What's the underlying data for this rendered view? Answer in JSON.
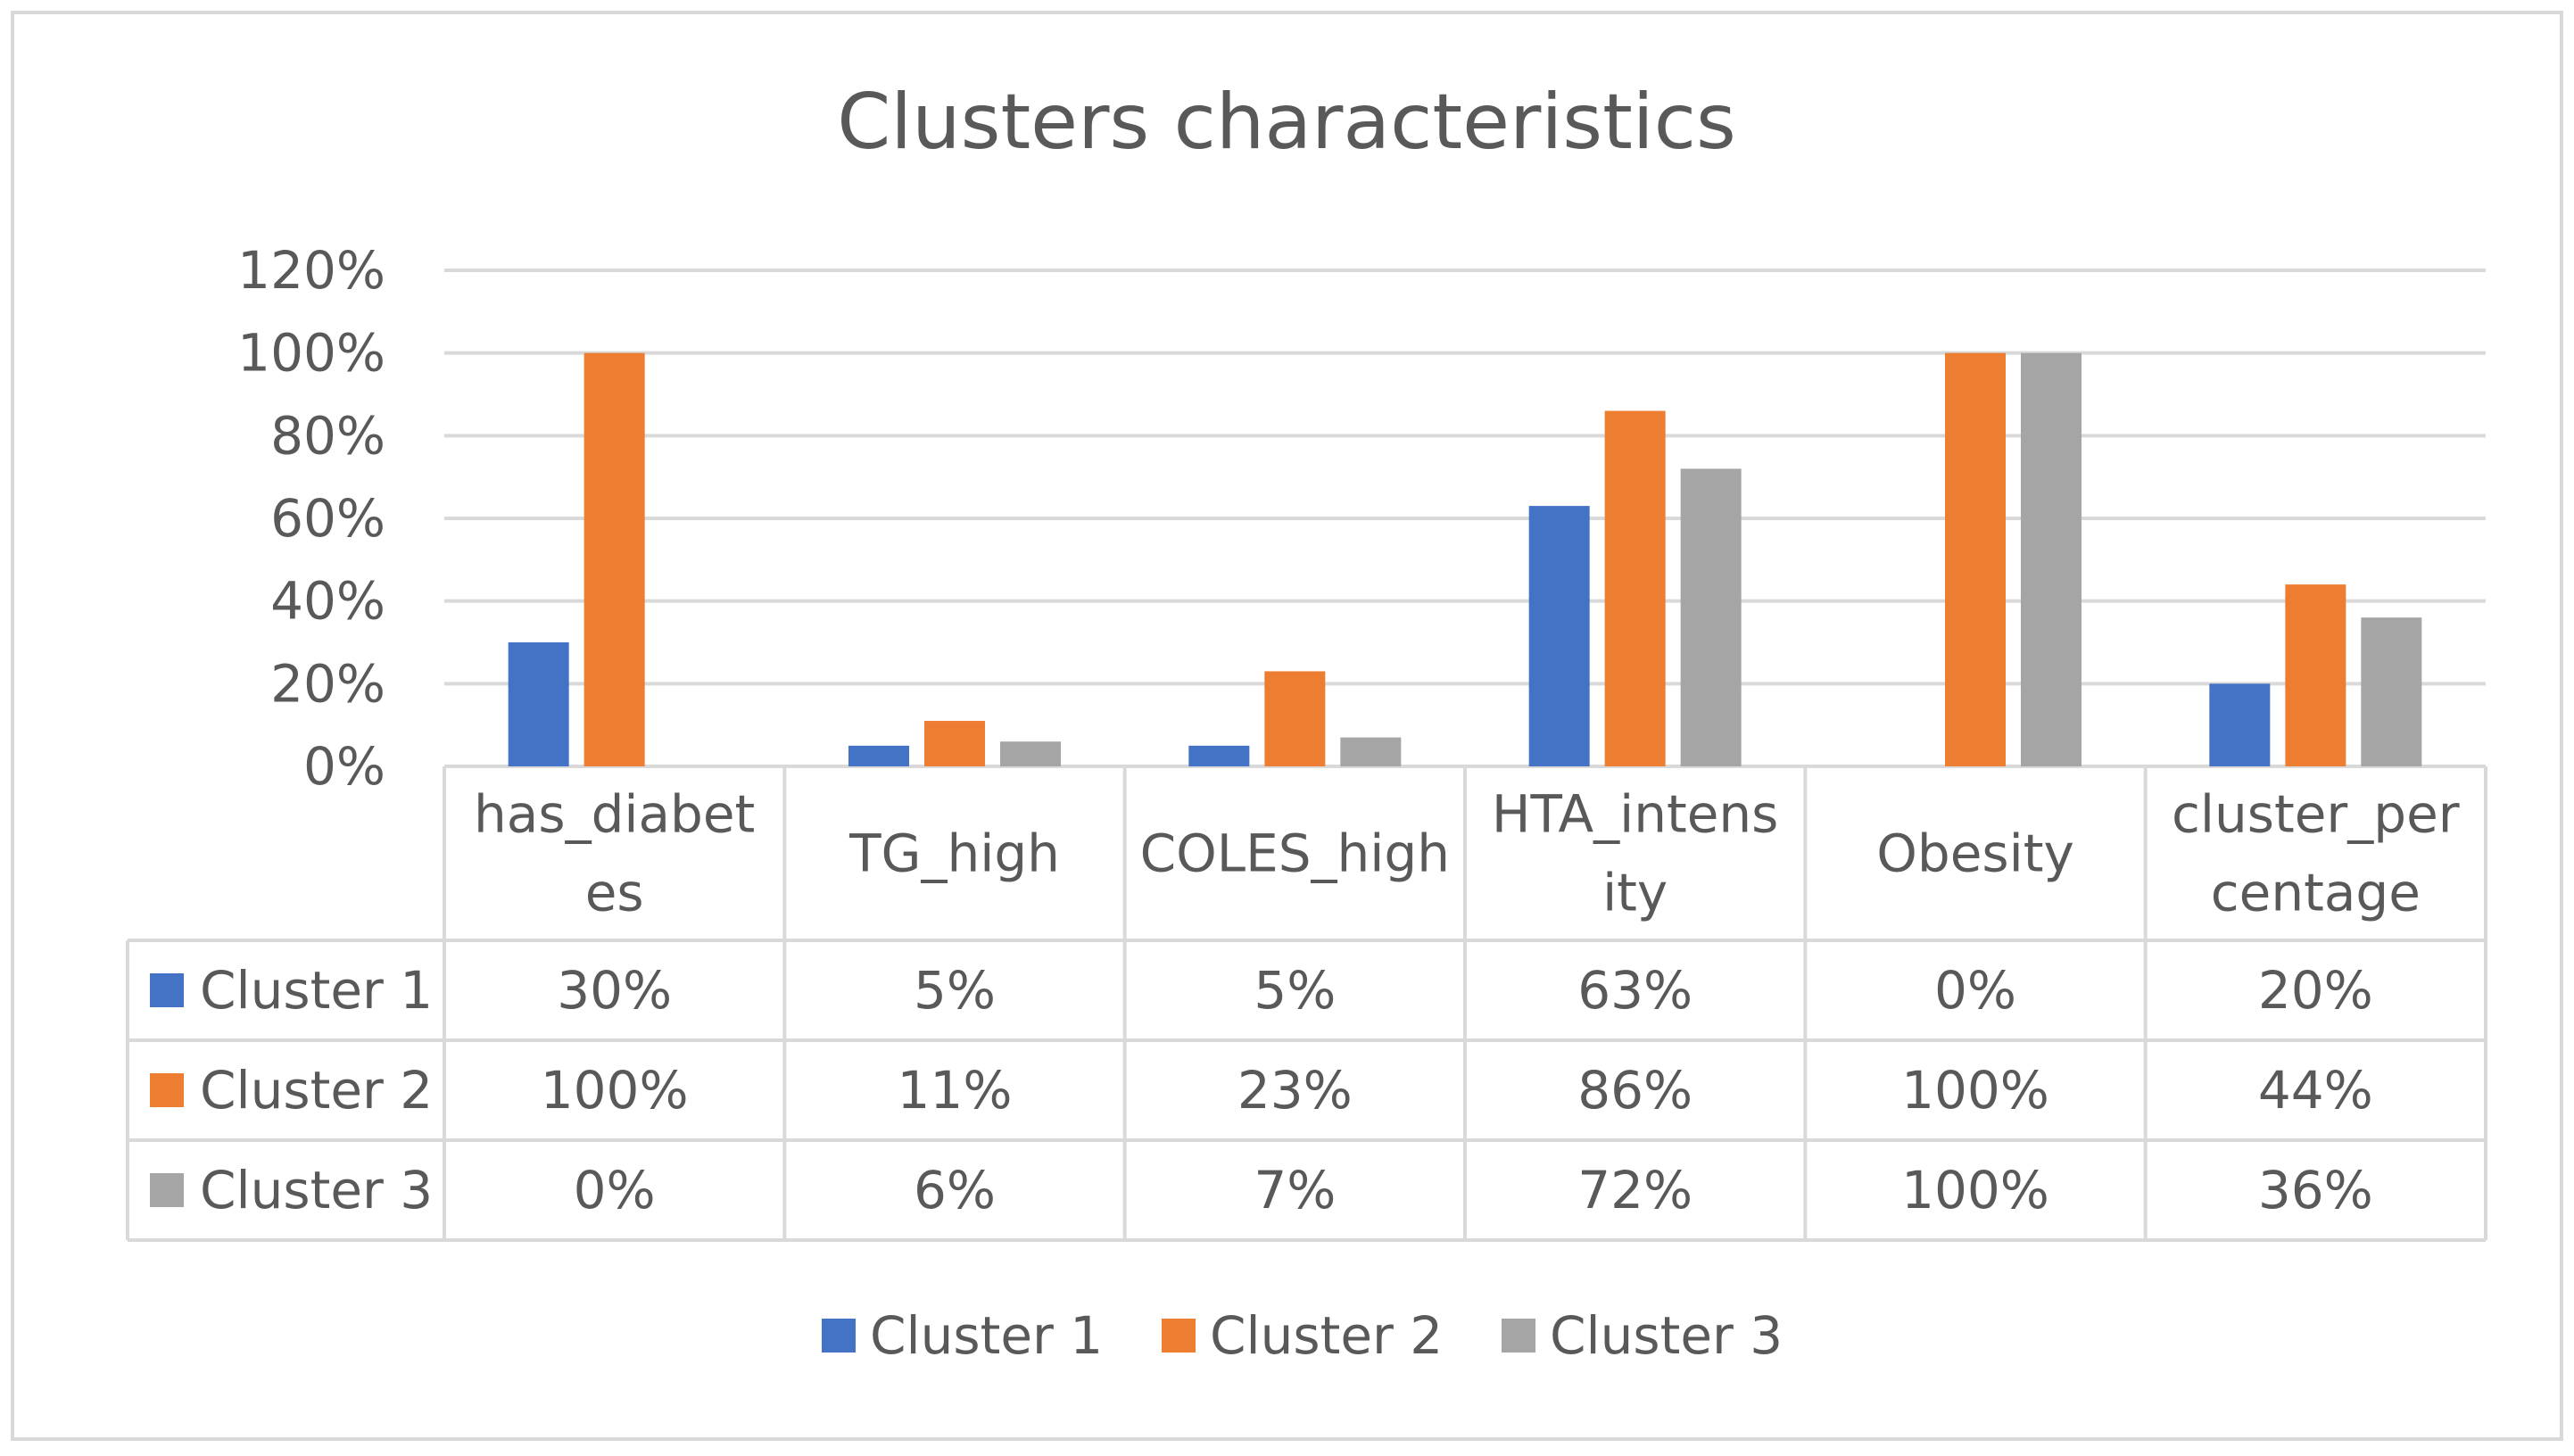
{
  "chart_data": {
    "type": "bar",
    "title": "Clusters characteristics",
    "categories": [
      [
        "has_diabet",
        "es"
      ],
      [
        "TG_high"
      ],
      [
        "COLES_high"
      ],
      [
        "HTA_intens",
        "ity"
      ],
      [
        "Obesity"
      ],
      [
        "cluster_per",
        "centage"
      ]
    ],
    "series": [
      {
        "name": "Cluster 1",
        "color": "#4472C4",
        "values": [
          30,
          5,
          5,
          63,
          0,
          20
        ],
        "labels": [
          "30%",
          "5%",
          "5%",
          "63%",
          "0%",
          "20%"
        ]
      },
      {
        "name": "Cluster 2",
        "color": "#ED7D31",
        "values": [
          100,
          11,
          23,
          86,
          100,
          44
        ],
        "labels": [
          "100%",
          "11%",
          "23%",
          "86%",
          "100%",
          "44%"
        ]
      },
      {
        "name": "Cluster 3",
        "color": "#A5A5A5",
        "values": [
          0,
          6,
          7,
          72,
          100,
          36
        ],
        "labels": [
          "0%",
          "6%",
          "7%",
          "72%",
          "100%",
          "36%"
        ]
      }
    ],
    "ylim": [
      0,
      120
    ],
    "yticks": [
      "0%",
      "20%",
      "40%",
      "60%",
      "80%",
      "100%",
      "120%"
    ],
    "ytick_values": [
      0,
      20,
      40,
      60,
      80,
      100,
      120
    ],
    "grid": true,
    "legend": "bottom",
    "data_table": true
  }
}
